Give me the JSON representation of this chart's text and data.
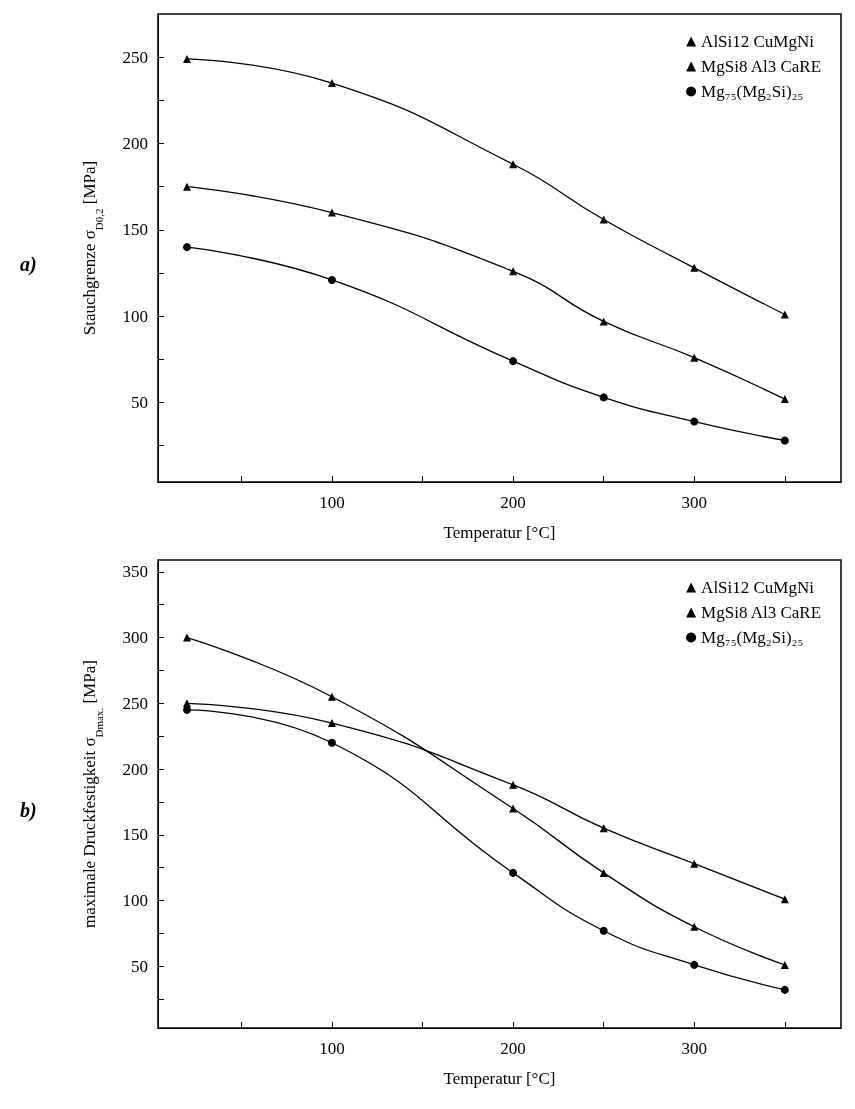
{
  "chart_data": [
    {
      "type": "line",
      "annotations": [
        "a)"
      ],
      "xlabel": "Temperatur [°C]",
      "ylabel": "Stauchgrenze σ$_{D0,2}$ [MPa]",
      "xlim": [
        4,
        381
      ],
      "xticks": [
        {
          "value": 50,
          "label": null
        },
        100,
        {
          "value": 150,
          "label": null
        },
        200,
        {
          "value": 250,
          "label": null
        },
        300,
        {
          "value": 350,
          "label": null
        }
      ],
      "ylim": [
        4,
        275
      ],
      "yticks": [
        {
          "value": 25,
          "label": null
        },
        50,
        {
          "value": 75,
          "label": null
        },
        100,
        {
          "value": 125,
          "label": null
        },
        150,
        {
          "value": 175,
          "label": null
        },
        200,
        {
          "value": 225,
          "label": null
        },
        250
      ],
      "x": [
        20,
        100,
        200,
        250,
        300,
        350
      ],
      "legend": "top right",
      "grid": false,
      "series": [
        {
          "name": "AlSi12 CuMgNi",
          "color": "#000000",
          "marker": "triangle",
          "values": [
            249,
            235,
            188,
            156,
            128,
            101
          ]
        },
        {
          "name": "MgSi8 Al3 CaRE",
          "color": "#000000",
          "marker": "triangle",
          "values": [
            175,
            160,
            126,
            97,
            76,
            52
          ]
        },
        {
          "name": "Mg₇₅(Mg₂Si)₂₅",
          "color": "#000000",
          "marker": "circle",
          "values": [
            140,
            121,
            74,
            53,
            39,
            28
          ]
        }
      ]
    },
    {
      "type": "line",
      "annotations": [
        "b)"
      ],
      "xlabel": "Temperatur [°C]",
      "ylabel": "maximale Druckfestigkeit σ$_{Dmax.}$ [MPa]",
      "xlim": [
        4,
        381
      ],
      "xticks": [
        {
          "value": 50,
          "label": null
        },
        100,
        {
          "value": 150,
          "label": null
        },
        200,
        {
          "value": 250,
          "label": null
        },
        300,
        {
          "value": 350,
          "label": null
        }
      ],
      "ylim": [
        3,
        359
      ],
      "yticks": [
        {
          "value": 25,
          "label": null
        },
        50,
        {
          "value": 75,
          "label": null
        },
        100,
        {
          "value": 125,
          "label": null
        },
        150,
        {
          "value": 175,
          "label": null
        },
        200,
        {
          "value": 225,
          "label": null
        },
        250,
        {
          "value": 275,
          "label": null
        },
        300,
        {
          "value": 325,
          "label": null
        },
        350
      ],
      "x": [
        20,
        100,
        200,
        250,
        300,
        350
      ],
      "legend": "top right",
      "grid": false,
      "series": [
        {
          "name": "AlSi12 CuMgNi",
          "color": "#000000",
          "marker": "triangle",
          "values": [
            250,
            235,
            188,
            155,
            128,
            101
          ]
        },
        {
          "name": "MgSi8 Al3 CaRE",
          "color": "#000000",
          "marker": "triangle",
          "values": [
            300,
            255,
            170,
            121,
            80,
            51
          ]
        },
        {
          "name": "Mg₇₅(Mg₂Si)₂₅",
          "color": "#000000",
          "marker": "circle",
          "values": [
            245,
            220,
            121,
            77,
            51,
            32
          ]
        }
      ]
    }
  ]
}
